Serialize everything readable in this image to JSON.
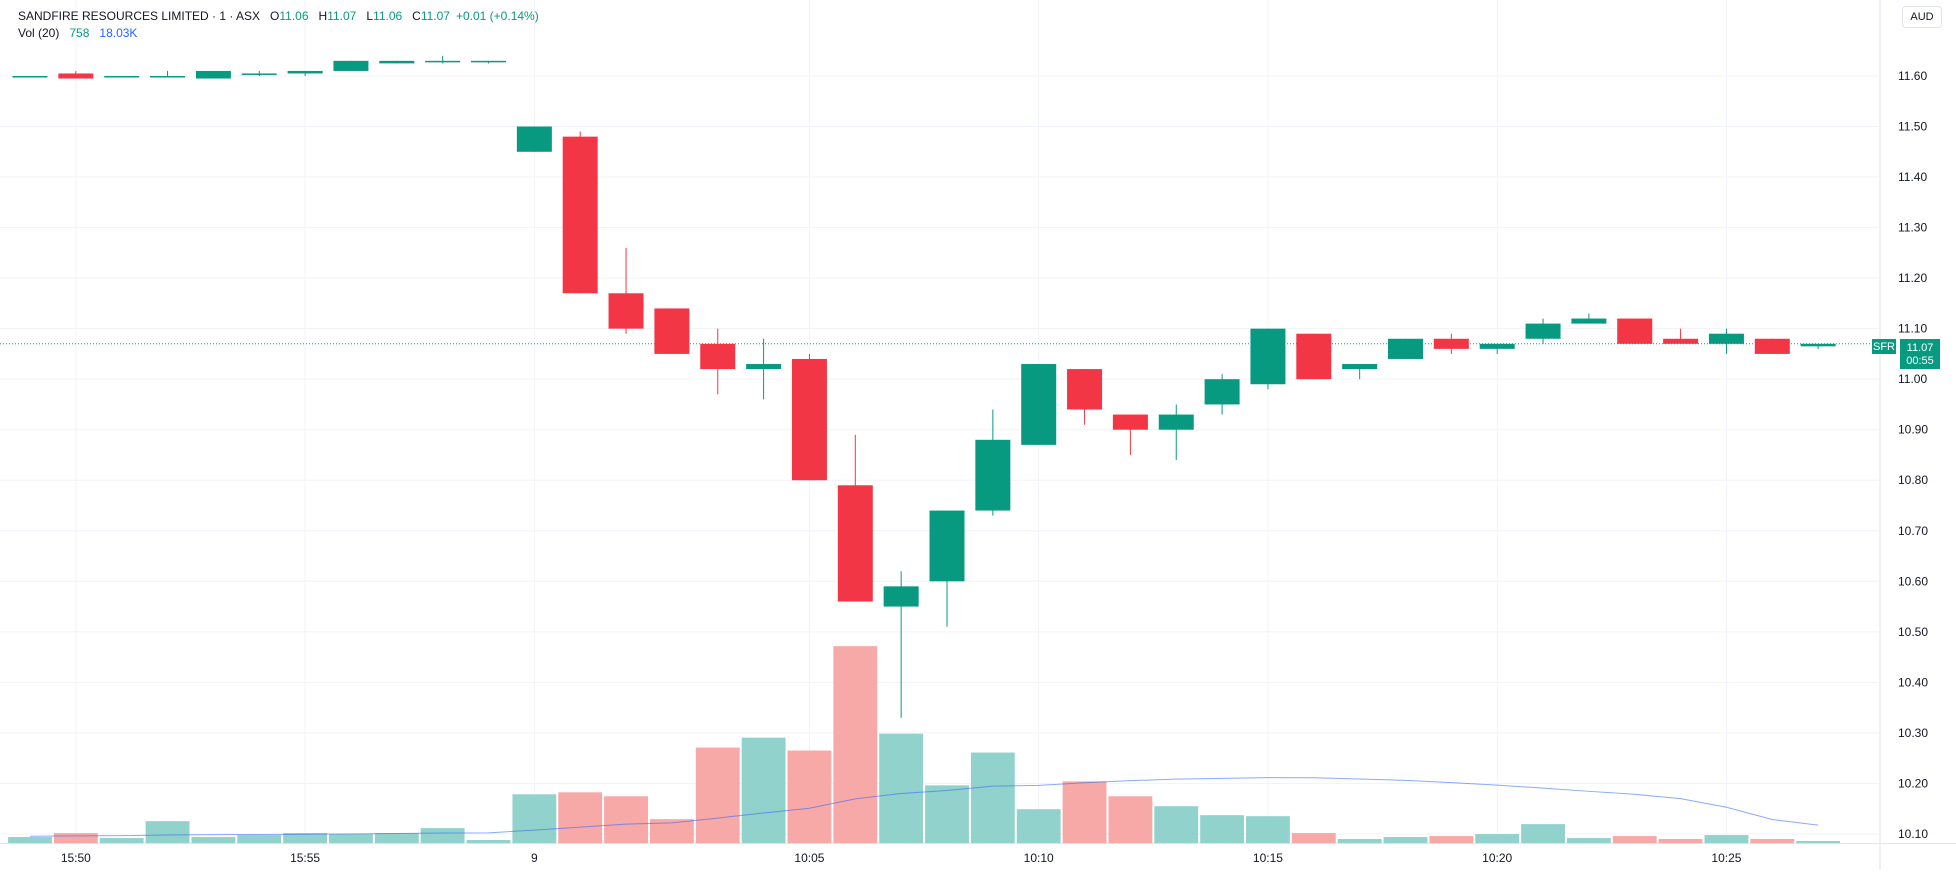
{
  "header": {
    "symbol_line": "SANDFIRE RESOURCES LIMITED · 1 · ASX",
    "open_label": "O",
    "open_value": "11.06",
    "high_label": "H",
    "high_value": "11.07",
    "low_label": "L",
    "low_value": "11.06",
    "close_label": "C",
    "close_value": "11.07",
    "change": "+0.01 (+0.14%)"
  },
  "volume_legend": {
    "title": "Vol (20)",
    "value": "758",
    "ma_value": "18.03K"
  },
  "currency_button": "AUD",
  "price_label": {
    "ticker": "SFR",
    "price": "11.07",
    "countdown": "00:55"
  },
  "colors": {
    "up": "#089981",
    "down": "#f23645",
    "vol_up": "#92d2cc",
    "vol_down": "#f7a9a7",
    "ma_line": "#2962ff"
  },
  "chart_data": {
    "type": "candlestick",
    "y_ticks": [
      "10.10",
      "10.20",
      "10.30",
      "10.40",
      "10.50",
      "10.60",
      "10.70",
      "10.80",
      "10.90",
      "11.00",
      "11.10",
      "11.20",
      "11.30",
      "11.40",
      "11.50",
      "11.60"
    ],
    "x_labels": [
      "15:50",
      "15:55",
      "9",
      "10:05",
      "10:10",
      "10:15",
      "10:20",
      "10:25"
    ],
    "last_price": 11.07,
    "candles": [
      {
        "o": 11.6,
        "h": 11.6,
        "l": 11.6,
        "c": 11.6,
        "v": 3.0
      },
      {
        "o": 11.605,
        "h": 11.61,
        "l": 11.595,
        "c": 11.595,
        "v": 5.0
      },
      {
        "o": 11.6,
        "h": 11.6,
        "l": 11.6,
        "c": 11.6,
        "v": 2.5
      },
      {
        "o": 11.6,
        "h": 11.61,
        "l": 11.6,
        "c": 11.6,
        "v": 11.0
      },
      {
        "o": 11.595,
        "h": 11.61,
        "l": 11.595,
        "c": 11.61,
        "v": 3.0
      },
      {
        "o": 11.605,
        "h": 11.61,
        "l": 11.6,
        "c": 11.605,
        "v": 4.0
      },
      {
        "o": 11.605,
        "h": 11.61,
        "l": 11.6,
        "c": 11.61,
        "v": 5.0
      },
      {
        "o": 11.61,
        "h": 11.63,
        "l": 11.61,
        "c": 11.63,
        "v": 4.5
      },
      {
        "o": 11.625,
        "h": 11.63,
        "l": 11.625,
        "c": 11.63,
        "v": 5.0
      },
      {
        "o": 11.63,
        "h": 11.64,
        "l": 11.625,
        "c": 11.63,
        "v": 7.5
      },
      {
        "o": 11.63,
        "h": 11.63,
        "l": 11.625,
        "c": 11.63,
        "v": 1.5
      },
      {
        "o": 11.45,
        "h": 11.5,
        "l": 11.45,
        "c": 11.5,
        "v": 24.5
      },
      {
        "o": 11.48,
        "h": 11.49,
        "l": 11.17,
        "c": 11.17,
        "v": 25.5
      },
      {
        "o": 11.17,
        "h": 11.26,
        "l": 11.09,
        "c": 11.1,
        "v": 23.5
      },
      {
        "o": 11.14,
        "h": 11.14,
        "l": 11.05,
        "c": 11.05,
        "v": 12.0
      },
      {
        "o": 11.07,
        "h": 11.1,
        "l": 10.97,
        "c": 11.02,
        "v": 48.0
      },
      {
        "o": 11.02,
        "h": 11.08,
        "l": 10.96,
        "c": 11.03,
        "v": 53.0
      },
      {
        "o": 11.04,
        "h": 11.05,
        "l": 10.8,
        "c": 10.8,
        "v": 46.5
      },
      {
        "o": 10.79,
        "h": 10.89,
        "l": 10.56,
        "c": 10.56,
        "v": 99.0
      },
      {
        "o": 10.55,
        "h": 10.62,
        "l": 10.33,
        "c": 10.59,
        "v": 55.0
      },
      {
        "o": 10.6,
        "h": 10.74,
        "l": 10.51,
        "c": 10.74,
        "v": 29.0
      },
      {
        "o": 10.74,
        "h": 10.94,
        "l": 10.73,
        "c": 10.88,
        "v": 45.5
      },
      {
        "o": 10.87,
        "h": 11.03,
        "l": 10.87,
        "c": 11.03,
        "v": 17.0
      },
      {
        "o": 11.02,
        "h": 11.02,
        "l": 10.91,
        "c": 10.94,
        "v": 31.0
      },
      {
        "o": 10.93,
        "h": 10.93,
        "l": 10.85,
        "c": 10.9,
        "v": 23.5
      },
      {
        "o": 10.9,
        "h": 10.95,
        "l": 10.84,
        "c": 10.93,
        "v": 18.5
      },
      {
        "o": 10.95,
        "h": 11.01,
        "l": 10.93,
        "c": 11.0,
        "v": 14.0
      },
      {
        "o": 10.99,
        "h": 11.1,
        "l": 10.98,
        "c": 11.1,
        "v": 13.5
      },
      {
        "o": 11.09,
        "h": 11.09,
        "l": 11.0,
        "c": 11.0,
        "v": 5.0
      },
      {
        "o": 11.02,
        "h": 11.03,
        "l": 11.0,
        "c": 11.03,
        "v": 2.0
      },
      {
        "o": 11.04,
        "h": 11.08,
        "l": 11.04,
        "c": 11.08,
        "v": 3.0
      },
      {
        "o": 11.08,
        "h": 11.09,
        "l": 11.05,
        "c": 11.06,
        "v": 3.5
      },
      {
        "o": 11.06,
        "h": 11.07,
        "l": 11.05,
        "c": 11.07,
        "v": 4.5
      },
      {
        "o": 11.08,
        "h": 11.12,
        "l": 11.07,
        "c": 11.11,
        "v": 9.5
      },
      {
        "o": 11.11,
        "h": 11.13,
        "l": 11.11,
        "c": 11.12,
        "v": 2.5
      },
      {
        "o": 11.12,
        "h": 11.12,
        "l": 11.07,
        "c": 11.07,
        "v": 3.5
      },
      {
        "o": 11.08,
        "h": 11.1,
        "l": 11.07,
        "c": 11.07,
        "v": 2.0
      },
      {
        "o": 11.07,
        "h": 11.1,
        "l": 11.05,
        "c": 11.09,
        "v": 4.0
      },
      {
        "o": 11.08,
        "h": 11.08,
        "l": 11.05,
        "c": 11.05,
        "v": 2.0
      },
      {
        "o": 11.065,
        "h": 11.07,
        "l": 11.06,
        "c": 11.07,
        "v": 1.0
      }
    ],
    "volume_ma": [
      3.4,
      3.6,
      3.7,
      4.0,
      4.2,
      4.3,
      4.4,
      4.6,
      4.8,
      5.0,
      5.1,
      6.5,
      8.0,
      9.5,
      10.1,
      12.5,
      15.1,
      17.5,
      22.2,
      24.9,
      26.4,
      28.6,
      29.0,
      30.3,
      31.4,
      32.1,
      32.5,
      32.9,
      32.8,
      32.2,
      31.5,
      30.4,
      29.1,
      27.6,
      26.0,
      24.5,
      22.3,
      18.0,
      11.8,
      9.0
    ]
  }
}
